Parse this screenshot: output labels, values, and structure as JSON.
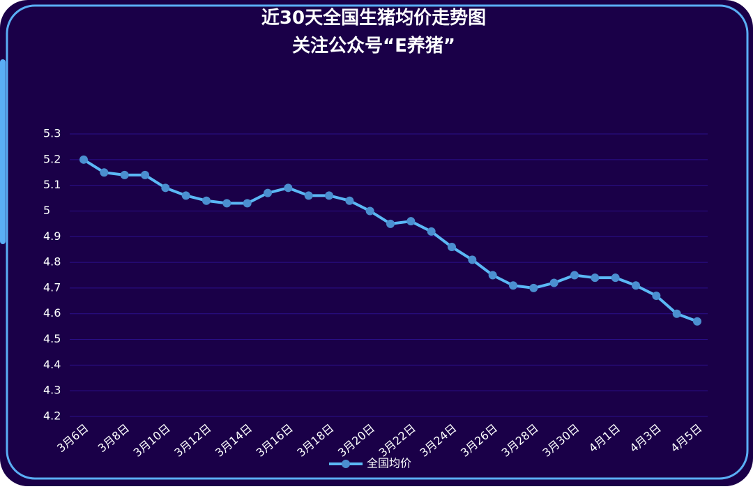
{
  "chart_data": {
    "type": "line",
    "title": "近30天全国生猪均价走势图",
    "subtitle": "关注公众号“E养猪”",
    "categories": [
      "3月6日",
      null,
      "3月8日",
      null,
      "3月10日",
      null,
      "3月12日",
      null,
      "3月14日",
      null,
      "3月16日",
      null,
      "3月18日",
      null,
      "3月20日",
      null,
      "3月22日",
      null,
      "3月24日",
      null,
      "3月26日",
      null,
      "3月28日",
      null,
      "3月30日",
      null,
      "4月1日",
      null,
      "4月3日",
      null,
      "4月5日"
    ],
    "series": [
      {
        "name": "全国均价",
        "color": "#5bb8f5",
        "values": [
          5.2,
          5.15,
          5.14,
          5.14,
          5.09,
          5.06,
          5.04,
          5.03,
          5.03,
          5.07,
          5.09,
          5.06,
          5.06,
          5.04,
          5.0,
          4.95,
          4.96,
          4.92,
          4.86,
          4.81,
          4.75,
          4.71,
          4.7,
          4.72,
          4.75,
          4.74,
          4.74,
          4.71,
          4.67,
          4.6,
          4.57
        ]
      }
    ],
    "ylim": [
      4.2,
      5.3
    ],
    "yticks": [
      4.2,
      4.3,
      4.4,
      4.5,
      4.6,
      4.7,
      4.8,
      4.9,
      5,
      5.1,
      5.2,
      5.3
    ],
    "grid": true
  }
}
